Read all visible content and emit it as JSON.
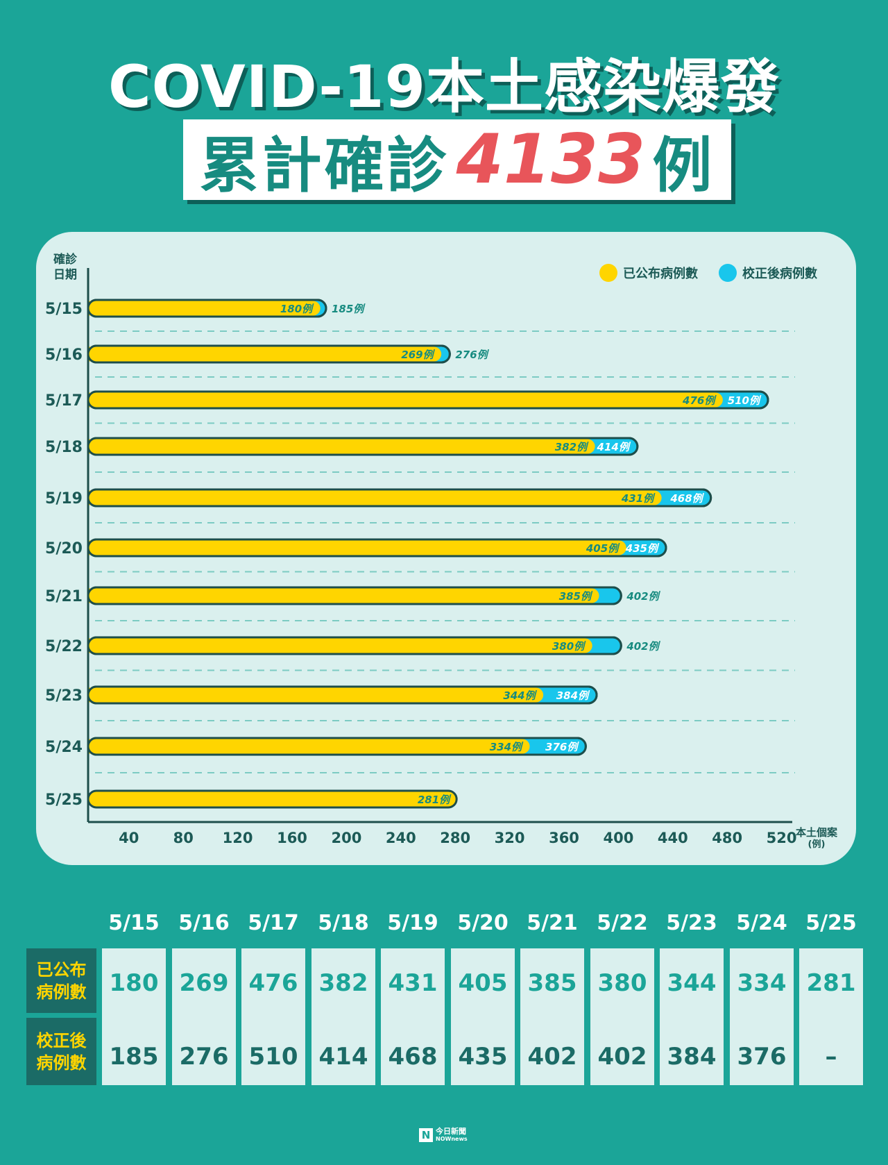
{
  "header": {
    "title": "COVID-19本土感染爆發",
    "subtitle_prefix": "累計確診",
    "subtitle_number": "4133",
    "subtitle_suffix": "例"
  },
  "legend": {
    "published_label": "已公布病例數",
    "corrected_label": "校正後病例數"
  },
  "colors": {
    "background": "#1ba598",
    "published": "#ffd500",
    "corrected": "#19c6ec",
    "bar_outline": "#1d4e4b",
    "accent_number": "#e8555a"
  },
  "chart_data": {
    "type": "bar",
    "orientation": "horizontal",
    "ylabel": "確診\n日期",
    "xlabel": "本土個案\n(例)",
    "xticks": [
      40,
      80,
      120,
      160,
      200,
      240,
      280,
      320,
      360,
      400,
      440,
      480,
      520
    ],
    "xlim": [
      10,
      530
    ],
    "categories": [
      "5/15",
      "5/16",
      "5/17",
      "5/18",
      "5/19",
      "5/20",
      "5/21",
      "5/22",
      "5/23",
      "5/24",
      "5/25"
    ],
    "series": [
      {
        "name": "已公布病例數",
        "values": [
          180,
          269,
          476,
          382,
          431,
          405,
          385,
          380,
          344,
          334,
          281
        ]
      },
      {
        "name": "校正後病例數",
        "values": [
          185,
          276,
          510,
          414,
          468,
          435,
          402,
          402,
          384,
          376,
          null
        ]
      }
    ],
    "value_suffix": "例",
    "grid": "dashed separators between categories"
  },
  "table": {
    "dates": [
      "5/15",
      "5/16",
      "5/17",
      "5/18",
      "5/19",
      "5/20",
      "5/21",
      "5/22",
      "5/23",
      "5/24",
      "5/25"
    ],
    "published_header": "已公布\n病例數",
    "corrected_header": "校正後\n病例數",
    "published": [
      "180",
      "269",
      "476",
      "382",
      "431",
      "405",
      "385",
      "380",
      "344",
      "334",
      "281"
    ],
    "corrected": [
      "185",
      "276",
      "510",
      "414",
      "468",
      "435",
      "402",
      "402",
      "384",
      "376",
      "–"
    ]
  },
  "footer": {
    "logo_line1": "今日新聞",
    "logo_line2": "NOWnews"
  }
}
